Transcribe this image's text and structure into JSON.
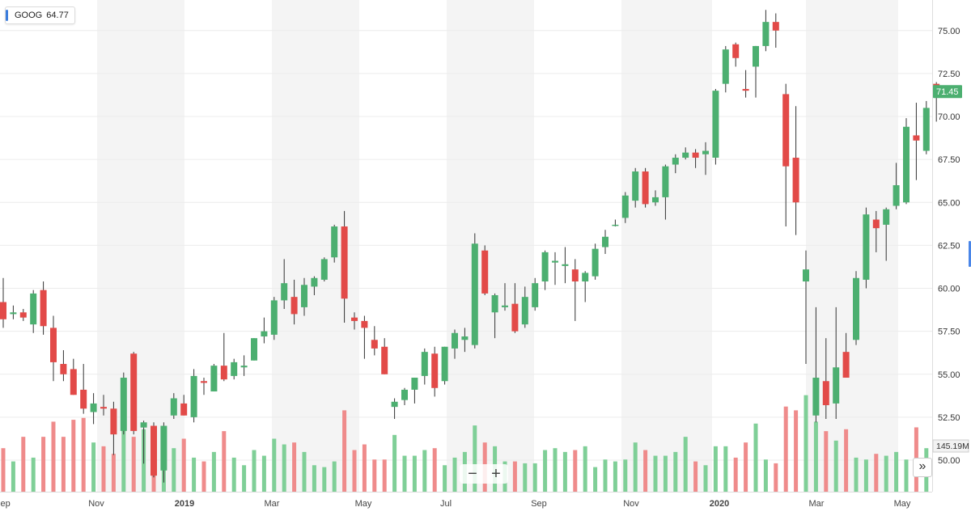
{
  "ticker": {
    "symbol": "GOOG",
    "value": "64.77"
  },
  "price_label": "71.45",
  "volume_label": "145.19M",
  "controls": {
    "zoom_out": "−",
    "zoom_in": "+",
    "scroll_right": "»"
  },
  "colors": {
    "up": "#4caf70",
    "down": "#e24a48",
    "up_volume": "#7fcf97",
    "down_volume": "#ef8b8b",
    "price_tag": "#4caf70",
    "band": "#f4f4f4"
  },
  "chart_data": {
    "type": "candlestick",
    "y_ticks": [
      "50.00",
      "52.50",
      "55.00",
      "57.50",
      "60.00",
      "62.50",
      "65.00",
      "67.50",
      "70.00",
      "72.50",
      "75.00"
    ],
    "ylim": [
      48.5,
      76.5
    ],
    "x_ticks": [
      "Sep",
      "Nov",
      "2019",
      "Mar",
      "May",
      "Jul",
      "Sep",
      "Nov",
      "2020",
      "Mar",
      "May"
    ],
    "ohlc": [
      [
        59.2,
        60.6,
        57.7,
        58.2
      ],
      [
        58.5,
        59.0,
        58.2,
        58.6
      ],
      [
        58.6,
        58.8,
        58.1,
        58.3
      ],
      [
        57.9,
        59.9,
        57.4,
        59.7
      ],
      [
        59.9,
        60.4,
        57.3,
        57.8
      ],
      [
        57.7,
        58.4,
        54.6,
        55.7
      ],
      [
        55.6,
        56.4,
        54.6,
        55.0
      ],
      [
        55.3,
        55.9,
        53.8,
        53.8
      ],
      [
        54.1,
        55.6,
        52.7,
        53.0
      ],
      [
        52.8,
        53.9,
        52.1,
        53.3
      ],
      [
        53.1,
        53.8,
        52.6,
        53.0
      ],
      [
        53.0,
        53.4,
        50.3,
        51.5
      ],
      [
        51.7,
        55.1,
        51.5,
        54.8
      ],
      [
        56.2,
        56.3,
        51.5,
        51.7
      ],
      [
        51.9,
        52.3,
        49.8,
        52.2
      ],
      [
        52.0,
        52.2,
        49.0,
        49.1
      ],
      [
        49.4,
        52.2,
        48.7,
        52.0
      ],
      [
        52.6,
        53.9,
        52.4,
        53.6
      ],
      [
        53.3,
        53.8,
        52.6,
        52.6
      ],
      [
        52.5,
        55.3,
        52.2,
        54.9
      ],
      [
        54.6,
        54.8,
        53.8,
        54.5
      ],
      [
        54.0,
        55.6,
        54.0,
        55.5
      ],
      [
        55.5,
        57.4,
        54.6,
        54.7
      ],
      [
        54.9,
        55.9,
        54.7,
        55.7
      ],
      [
        55.4,
        56.1,
        54.9,
        55.5
      ],
      [
        55.8,
        57.1,
        55.8,
        57.1
      ],
      [
        57.2,
        58.3,
        56.8,
        57.5
      ],
      [
        57.3,
        59.5,
        57.0,
        59.3
      ],
      [
        59.3,
        61.7,
        58.8,
        60.3
      ],
      [
        59.5,
        60.5,
        57.9,
        58.5
      ],
      [
        58.9,
        60.6,
        58.4,
        60.2
      ],
      [
        60.1,
        60.7,
        59.6,
        60.6
      ],
      [
        60.5,
        61.8,
        60.4,
        61.7
      ],
      [
        61.8,
        63.7,
        61.5,
        63.6
      ],
      [
        63.6,
        64.5,
        58.0,
        59.4
      ],
      [
        58.3,
        58.6,
        57.6,
        58.1
      ],
      [
        58.1,
        58.4,
        55.9,
        57.7
      ],
      [
        57.0,
        57.8,
        56.1,
        56.5
      ],
      [
        56.6,
        57.1,
        55.0,
        55.0
      ],
      [
        53.1,
        53.6,
        52.4,
        53.4
      ],
      [
        53.5,
        54.2,
        53.2,
        54.1
      ],
      [
        54.1,
        54.8,
        53.3,
        54.8
      ],
      [
        54.9,
        56.5,
        54.4,
        56.3
      ],
      [
        56.2,
        56.6,
        53.7,
        54.2
      ],
      [
        54.6,
        56.6,
        54.4,
        56.6
      ],
      [
        56.5,
        57.6,
        55.9,
        57.4
      ],
      [
        57.0,
        57.7,
        56.3,
        57.2
      ],
      [
        56.7,
        63.2,
        56.5,
        62.6
      ],
      [
        62.2,
        62.5,
        59.6,
        59.7
      ],
      [
        58.6,
        59.7,
        57.1,
        59.6
      ],
      [
        58.9,
        60.3,
        58.7,
        59.0
      ],
      [
        59.1,
        60.3,
        57.4,
        57.5
      ],
      [
        57.9,
        60.1,
        57.7,
        59.5
      ],
      [
        58.9,
        60.6,
        58.7,
        60.3
      ],
      [
        60.4,
        62.2,
        59.9,
        62.1
      ],
      [
        61.5,
        62.1,
        60.2,
        61.6
      ],
      [
        61.3,
        62.4,
        60.3,
        61.4
      ],
      [
        61.1,
        61.7,
        58.1,
        60.4
      ],
      [
        60.4,
        61.0,
        59.2,
        60.9
      ],
      [
        60.7,
        62.6,
        60.5,
        62.3
      ],
      [
        62.4,
        63.4,
        62.0,
        63.0
      ],
      [
        63.7,
        64.0,
        63.6,
        63.7
      ],
      [
        64.1,
        65.6,
        63.8,
        65.4
      ],
      [
        65.1,
        67.0,
        64.7,
        66.8
      ],
      [
        66.8,
        67.0,
        64.7,
        64.9
      ],
      [
        65.0,
        65.7,
        64.8,
        65.3
      ],
      [
        65.3,
        67.2,
        64.0,
        67.1
      ],
      [
        67.2,
        67.8,
        66.7,
        67.6
      ],
      [
        67.6,
        68.2,
        67.5,
        67.9
      ],
      [
        67.9,
        68.1,
        67.0,
        67.6
      ],
      [
        67.8,
        68.5,
        66.6,
        68.0
      ],
      [
        67.6,
        71.6,
        67.2,
        71.5
      ],
      [
        71.9,
        74.1,
        71.4,
        73.9
      ],
      [
        74.2,
        74.3,
        72.9,
        73.4
      ],
      [
        71.6,
        72.7,
        71.1,
        71.5
      ],
      [
        72.9,
        74.1,
        71.1,
        74.1
      ],
      [
        74.1,
        76.2,
        73.8,
        75.5
      ],
      [
        75.5,
        76.0,
        74.0,
        75.0
      ],
      [
        71.3,
        71.9,
        63.6,
        67.1
      ],
      [
        67.6,
        70.6,
        63.1,
        65.0
      ],
      [
        60.4,
        62.2,
        55.6,
        61.1
      ],
      [
        52.6,
        58.9,
        52.2,
        54.8
      ],
      [
        54.6,
        57.1,
        52.4,
        53.2
      ],
      [
        53.3,
        58.9,
        52.4,
        55.4
      ],
      [
        56.3,
        57.4,
        54.9,
        54.8
      ],
      [
        57.0,
        61.0,
        56.7,
        60.6
      ],
      [
        60.5,
        64.7,
        60.0,
        64.3
      ],
      [
        64.0,
        64.5,
        62.1,
        63.5
      ],
      [
        63.7,
        64.7,
        61.6,
        64.6
      ],
      [
        64.8,
        67.3,
        64.6,
        66.0
      ],
      [
        65.0,
        69.9,
        64.9,
        69.4
      ],
      [
        68.9,
        70.8,
        66.3,
        68.6
      ],
      [
        68.0,
        70.9,
        67.8,
        70.5
      ],
      [
        71.9,
        72.0,
        69.7,
        71.5
      ]
    ],
    "volume_values": [
      0.23,
      0.16,
      0.29,
      0.18,
      0.29,
      0.37,
      0.29,
      0.38,
      0.39,
      0.26,
      0.24,
      0.2,
      0.35,
      0.29,
      0.33,
      0.29,
      0.27,
      0.23,
      0.28,
      0.18,
      0.16,
      0.21,
      0.32,
      0.18,
      0.14,
      0.22,
      0.19,
      0.28,
      0.25,
      0.26,
      0.21,
      0.14,
      0.13,
      0.16,
      0.43,
      0.22,
      0.25,
      0.17,
      0.17,
      0.3,
      0.19,
      0.19,
      0.22,
      0.23,
      0.14,
      0.18,
      0.21,
      0.35,
      0.26,
      0.24,
      0.16,
      0.16,
      0.15,
      0.15,
      0.22,
      0.23,
      0.21,
      0.22,
      0.24,
      0.13,
      0.17,
      0.16,
      0.17,
      0.26,
      0.22,
      0.19,
      0.19,
      0.21,
      0.29,
      0.16,
      0.14,
      0.24,
      0.24,
      0.18,
      0.26,
      0.36,
      0.17,
      0.15,
      0.45,
      0.43,
      0.51,
      0.37,
      0.32,
      0.27,
      0.33,
      0.18,
      0.17,
      0.2,
      0.19,
      0.21,
      0.17,
      0.34,
      0.23
    ]
  }
}
